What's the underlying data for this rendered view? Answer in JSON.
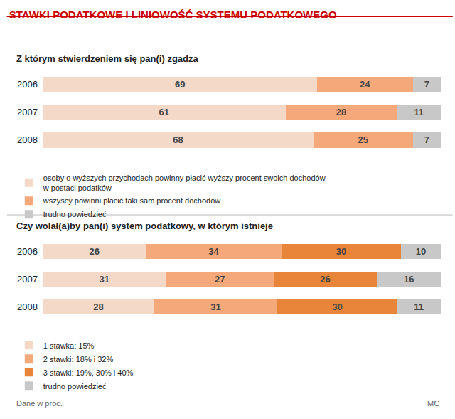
{
  "chart_data": [
    {
      "type": "bar",
      "title": "STAWKI PODATKOWE I LINIOWOŚĆ SYSTEMU PODATKOWEGO",
      "subtitle": "Z którym stwierdzeniem się pan(i) zgadza",
      "orientation": "horizontal",
      "stacked": true,
      "data_labels": true,
      "tick_labels": "y",
      "grid": false,
      "legend": "bottom",
      "categories": [
        "2006",
        "2007",
        "2008"
      ],
      "xlim": [
        0,
        100
      ],
      "series": [
        {
          "name": "osoby o wyższych przychodach powinny płacić wyższy procent swoich dochodów\nw postaci podatków",
          "color": "#f5d9c8",
          "values": [
            69,
            61,
            68
          ]
        },
        {
          "name": "wszyscy powinni płacić taki sam procent dochodów",
          "color": "#f5a87a",
          "values": [
            24,
            28,
            25
          ]
        },
        {
          "name": "trudno powiedzieć",
          "color": "#c8c8c8",
          "values": [
            7,
            11,
            7
          ]
        }
      ]
    },
    {
      "type": "bar",
      "subtitle": "Czy wolał(a)by pan(i) system podatkowy, w którym istnieje",
      "orientation": "horizontal",
      "stacked": true,
      "data_labels": true,
      "tick_labels": "y",
      "grid": false,
      "legend": "bottom",
      "categories": [
        "2006",
        "2007",
        "2008"
      ],
      "xlim": [
        0,
        100
      ],
      "series": [
        {
          "name": "1 stawka: 15%",
          "color": "#f5d9c8",
          "values": [
            26,
            31,
            28
          ]
        },
        {
          "name": "2 stawki: 18% i 32%",
          "color": "#f5a87a",
          "values": [
            34,
            27,
            31
          ]
        },
        {
          "name": "3 stawki: 19%, 30% i 40%",
          "color": "#e8853a",
          "values": [
            30,
            26,
            30
          ]
        },
        {
          "name": "trudno powiedzieć",
          "color": "#c8c8c8",
          "values": [
            10,
            16,
            11
          ]
        }
      ],
      "annotations": [
        "Dane w proc.",
        "MC"
      ]
    }
  ]
}
